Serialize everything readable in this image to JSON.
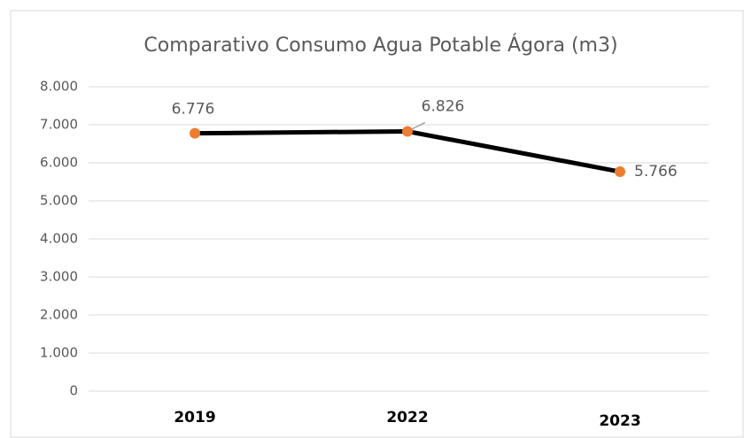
{
  "chart_data": {
    "type": "line",
    "title": "Comparativo Consumo Agua Potable Ágora (m3)",
    "categories": [
      "2019",
      "2022",
      "2023"
    ],
    "series": [
      {
        "name": "Consumo",
        "color": "#000000",
        "marker_color": "#ed7d31",
        "values": [
          6776,
          6826,
          5766
        ],
        "value_labels": [
          "6.776",
          "6.826",
          "5.766"
        ]
      }
    ],
    "ylim": [
      0,
      8000
    ],
    "yticks": [
      0,
      {
        "value": 1000,
        "label": "1.000"
      },
      {
        "value": 2000,
        "label": "2.000"
      },
      {
        "value": 3000,
        "label": "3.000"
      },
      {
        "value": 4000,
        "label": "4.000"
      },
      {
        "value": 5000,
        "label": "5.000"
      },
      {
        "value": 6000,
        "label": "6.000"
      },
      {
        "value": 7000,
        "label": "7.000"
      },
      {
        "value": 8000,
        "label": "8.000"
      }
    ],
    "grid": true
  }
}
